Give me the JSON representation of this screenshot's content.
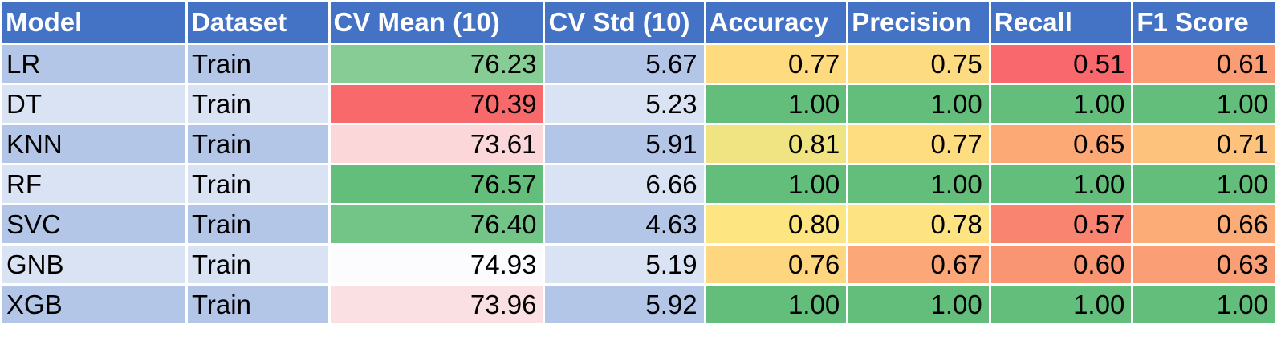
{
  "headers": [
    "Model",
    "Dataset",
    "CV Mean (10)",
    "CV Std (10)",
    "Accuracy",
    "Precision",
    "Recall",
    "F1 Score"
  ],
  "colors": {
    "header_bg": "#4472c4",
    "band_dark": "#b4c6e7",
    "band_light": "#dae3f3"
  },
  "rows": [
    {
      "model": "LR",
      "dataset": "Train",
      "cv_mean": "76.23",
      "cv_std": "5.67",
      "accuracy": "0.77",
      "precision": "0.75",
      "recall": "0.51",
      "f1": "0.61",
      "fills": {
        "cv_mean": "#88cc95",
        "accuracy": "#fedb7f",
        "precision": "#fddb80",
        "recall": "#f8686c",
        "f1": "#fb9c74"
      }
    },
    {
      "model": "DT",
      "dataset": "Train",
      "cv_mean": "70.39",
      "cv_std": "5.23",
      "accuracy": "1.00",
      "precision": "1.00",
      "recall": "1.00",
      "f1": "1.00",
      "fills": {
        "cv_mean": "#f8696b",
        "accuracy": "#63be7b",
        "precision": "#63be7b",
        "recall": "#63be7b",
        "f1": "#63be7b"
      }
    },
    {
      "model": "KNN",
      "dataset": "Train",
      "cv_mean": "73.61",
      "cv_std": "5.91",
      "accuracy": "0.81",
      "precision": "0.77",
      "recall": "0.65",
      "f1": "0.71",
      "fills": {
        "cv_mean": "#fbd7d9",
        "accuracy": "#f0e382",
        "precision": "#fedd81",
        "recall": "#fca976",
        "f1": "#fdc27c"
      }
    },
    {
      "model": "RF",
      "dataset": "Train",
      "cv_mean": "76.57",
      "cv_std": "6.66",
      "accuracy": "1.00",
      "precision": "1.00",
      "recall": "1.00",
      "f1": "1.00",
      "fills": {
        "cv_mean": "#63be7b",
        "accuracy": "#63be7b",
        "precision": "#63be7b",
        "recall": "#63be7b",
        "f1": "#63be7b"
      }
    },
    {
      "model": "SVC",
      "dataset": "Train",
      "cv_mean": "76.40",
      "cv_std": "4.63",
      "accuracy": "0.80",
      "precision": "0.78",
      "recall": "0.57",
      "f1": "0.66",
      "fills": {
        "cv_mean": "#73c487",
        "accuracy": "#fde582",
        "precision": "#fee382",
        "recall": "#f98470",
        "f1": "#fbac77"
      }
    },
    {
      "model": "GNB",
      "dataset": "Train",
      "cv_mean": "74.93",
      "cv_std": "5.19",
      "accuracy": "0.76",
      "precision": "0.67",
      "recall": "0.60",
      "f1": "0.63",
      "fills": {
        "cv_mean": "#fcfcff",
        "accuracy": "#fed680",
        "precision": "#fca777",
        "recall": "#f99573",
        "f1": "#fa9f75"
      }
    },
    {
      "model": "XGB",
      "dataset": "Train",
      "cv_mean": "73.96",
      "cv_std": "5.92",
      "accuracy": "1.00",
      "precision": "1.00",
      "recall": "1.00",
      "f1": "1.00",
      "fills": {
        "cv_mean": "#fbe0e3",
        "accuracy": "#63be7b",
        "precision": "#63be7b",
        "recall": "#63be7b",
        "f1": "#63be7b"
      }
    }
  ]
}
